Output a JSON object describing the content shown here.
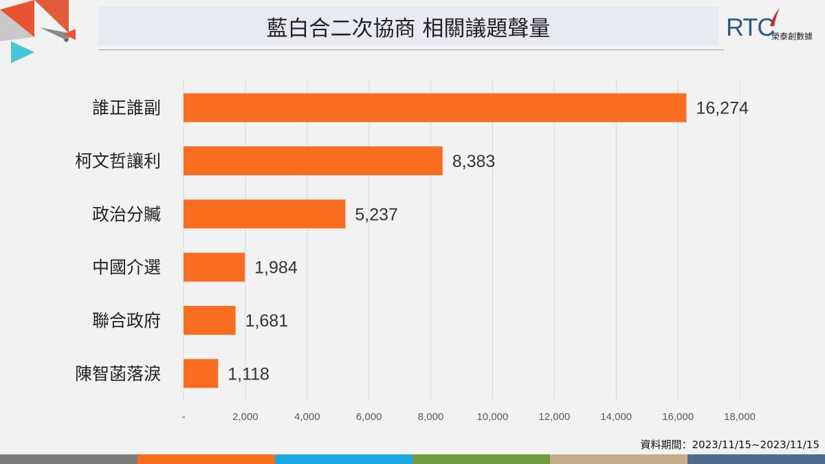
{
  "header": {
    "title": "藍白合二次協商 相關議題聲量",
    "logo_text": "RTC",
    "logo_subtitle": "榮泰創數據"
  },
  "chart_data": {
    "type": "bar",
    "orientation": "horizontal",
    "title": "藍白合二次協商 相關議題聲量",
    "categories": [
      "誰正誰副",
      "柯文哲讓利",
      "政治分贓",
      "中國介選",
      "聯合政府",
      "陳智菡落淚"
    ],
    "values": [
      16274,
      8383,
      5237,
      1984,
      1681,
      1118
    ],
    "value_labels": [
      "16,274",
      "8,383",
      "5,237",
      "1,984",
      "1,681",
      "1,118"
    ],
    "xlim": [
      0,
      18000
    ],
    "ticks": [
      0,
      2000,
      4000,
      6000,
      8000,
      10000,
      12000,
      14000,
      16000,
      18000
    ],
    "tick_labels": [
      "-",
      "2,000",
      "4,000",
      "6,000",
      "8,000",
      "10,000",
      "12,000",
      "14,000",
      "16,000",
      "18,000"
    ],
    "grid": "vertical",
    "bar_color": "#f96d1e"
  },
  "footer": {
    "note": "資料期間：2023/11/15~2023/11/15"
  },
  "colors": {
    "stripes": [
      "#7b7b7b",
      "#f96d1e",
      "#1aa7df",
      "#6f9a3f",
      "#c5ad8a",
      "#4d6b8f"
    ]
  }
}
